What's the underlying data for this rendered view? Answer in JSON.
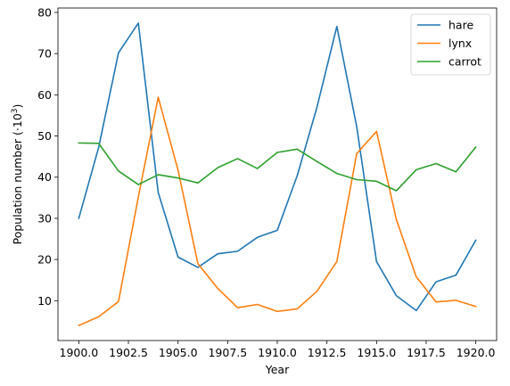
{
  "chart_data": {
    "type": "line",
    "xlabel": "Year",
    "ylabel": "Population number (·10",
    "ylabel_superscript": "3",
    "ylabel_suffix": ")",
    "x": [
      1900,
      1901,
      1902,
      1903,
      1904,
      1905,
      1906,
      1907,
      1908,
      1909,
      1910,
      1911,
      1912,
      1913,
      1914,
      1915,
      1916,
      1917,
      1918,
      1919,
      1920
    ],
    "series": [
      {
        "name": "hare",
        "color": "#1f77b4",
        "values": [
          30.0,
          47.2,
          70.2,
          77.4,
          36.3,
          20.6,
          18.1,
          21.4,
          22.0,
          25.4,
          27.1,
          40.3,
          57.0,
          76.6,
          52.3,
          19.5,
          11.2,
          7.6,
          14.6,
          16.2,
          24.7
        ]
      },
      {
        "name": "lynx",
        "color": "#ff7f0e",
        "values": [
          4.0,
          6.1,
          9.8,
          35.2,
          59.4,
          41.7,
          19.0,
          13.0,
          8.3,
          9.1,
          7.4,
          8.0,
          12.3,
          19.5,
          45.7,
          51.1,
          29.7,
          15.8,
          9.7,
          10.1,
          8.6
        ]
      },
      {
        "name": "carrot",
        "color": "#2ca02c",
        "values": [
          48.3,
          48.2,
          41.5,
          38.2,
          40.6,
          39.8,
          38.6,
          42.3,
          44.5,
          42.1,
          46.0,
          46.8,
          43.8,
          40.9,
          39.4,
          39.0,
          36.7,
          41.8,
          43.3,
          41.3,
          47.3
        ]
      }
    ],
    "xticks": [
      1900,
      1902.5,
      1905,
      1907.5,
      1910,
      1912.5,
      1915,
      1917.5,
      1920
    ],
    "xtick_labels": [
      "1900.0",
      "1902.5",
      "1905.0",
      "1907.5",
      "1910.0",
      "1912.5",
      "1915.0",
      "1917.5",
      "1920.0"
    ],
    "yticks": [
      10,
      20,
      30,
      40,
      50,
      60,
      70,
      80
    ],
    "ytick_labels": [
      "10",
      "20",
      "30",
      "40",
      "50",
      "60",
      "70",
      "80"
    ],
    "xlim": [
      1898.95,
      1921.05
    ],
    "ylim": [
      0.33,
      81.07
    ],
    "grid": false,
    "legend_position": "upper right"
  }
}
